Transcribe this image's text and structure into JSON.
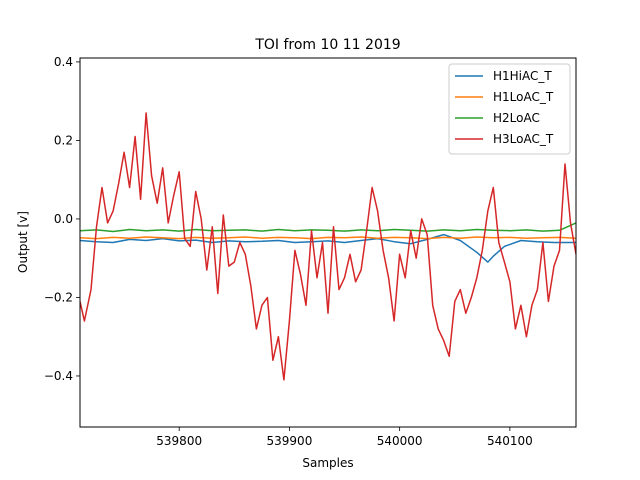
{
  "chart_data": {
    "type": "line",
    "title": "TOI from 10 11 2019",
    "xlabel": "Samples",
    "ylabel": "Output [v]",
    "xlim": [
      539710,
      540160
    ],
    "ylim": [
      -0.53,
      0.41
    ],
    "xticks": [
      539800,
      539900,
      540000,
      540100
    ],
    "xtick_labels": [
      "539800",
      "539900",
      "540000",
      "540100"
    ],
    "yticks": [
      -0.4,
      -0.2,
      0.0,
      0.2,
      0.4
    ],
    "ytick_labels": [
      "−0.4",
      "−0.2",
      "0.0",
      "0.2",
      "0.4"
    ],
    "grid": false,
    "legend_position": "top-right",
    "series": [
      {
        "name": "H1HiAC_T",
        "color": "#1f77b4",
        "x": [
          539710,
          539725,
          539740,
          539755,
          539770,
          539785,
          539800,
          539815,
          539830,
          539845,
          539860,
          539875,
          539890,
          539905,
          539920,
          539935,
          539950,
          539965,
          539980,
          539995,
          540010,
          540025,
          540040,
          540055,
          540070,
          540080,
          540085,
          540095,
          540110,
          540125,
          540140,
          540160
        ],
        "y": [
          -0.055,
          -0.058,
          -0.06,
          -0.052,
          -0.055,
          -0.05,
          -0.056,
          -0.054,
          -0.06,
          -0.056,
          -0.058,
          -0.057,
          -0.055,
          -0.06,
          -0.058,
          -0.056,
          -0.06,
          -0.055,
          -0.05,
          -0.058,
          -0.063,
          -0.052,
          -0.04,
          -0.055,
          -0.085,
          -0.11,
          -0.095,
          -0.07,
          -0.055,
          -0.058,
          -0.06,
          -0.06
        ]
      },
      {
        "name": "H1LoAC_T",
        "color": "#ff7f0e",
        "x": [
          539710,
          539725,
          539740,
          539755,
          539770,
          539785,
          539800,
          539815,
          539830,
          539845,
          539860,
          539875,
          539890,
          539905,
          539920,
          539935,
          539950,
          539965,
          539980,
          539995,
          540010,
          540025,
          540040,
          540055,
          540070,
          540085,
          540100,
          540115,
          540130,
          540145,
          540160
        ],
        "y": [
          -0.048,
          -0.05,
          -0.047,
          -0.049,
          -0.046,
          -0.048,
          -0.05,
          -0.047,
          -0.049,
          -0.048,
          -0.046,
          -0.049,
          -0.047,
          -0.048,
          -0.05,
          -0.047,
          -0.048,
          -0.046,
          -0.049,
          -0.047,
          -0.048,
          -0.05,
          -0.047,
          -0.049,
          -0.046,
          -0.048,
          -0.047,
          -0.049,
          -0.048,
          -0.047,
          -0.049
        ]
      },
      {
        "name": "H2LoAC",
        "color": "#2ca02c",
        "x": [
          539710,
          539725,
          539740,
          539755,
          539770,
          539785,
          539800,
          539815,
          539830,
          539845,
          539860,
          539875,
          539890,
          539905,
          539920,
          539935,
          539950,
          539965,
          539980,
          539995,
          540010,
          540025,
          540040,
          540055,
          540070,
          540085,
          540100,
          540115,
          540130,
          540145,
          540160
        ],
        "y": [
          -0.03,
          -0.028,
          -0.032,
          -0.027,
          -0.03,
          -0.028,
          -0.031,
          -0.027,
          -0.03,
          -0.029,
          -0.028,
          -0.031,
          -0.027,
          -0.03,
          -0.028,
          -0.029,
          -0.031,
          -0.028,
          -0.03,
          -0.027,
          -0.029,
          -0.031,
          -0.028,
          -0.03,
          -0.027,
          -0.029,
          -0.03,
          -0.028,
          -0.031,
          -0.029,
          -0.01
        ]
      },
      {
        "name": "H3LoAC_T",
        "color": "#d62728",
        "x": [
          539710,
          539714,
          539720,
          539725,
          539730,
          539735,
          539740,
          539745,
          539750,
          539755,
          539760,
          539765,
          539770,
          539775,
          539780,
          539785,
          539790,
          539795,
          539800,
          539805,
          539810,
          539815,
          539820,
          539825,
          539830,
          539835,
          539840,
          539845,
          539850,
          539855,
          539860,
          539865,
          539870,
          539875,
          539880,
          539885,
          539890,
          539895,
          539900,
          539905,
          539910,
          539915,
          539920,
          539925,
          539930,
          539935,
          539940,
          539945,
          539950,
          539955,
          539960,
          539965,
          539970,
          539975,
          539980,
          539985,
          539990,
          539995,
          540000,
          540005,
          540010,
          540015,
          540020,
          540025,
          540030,
          540035,
          540040,
          540045,
          540050,
          540055,
          540060,
          540065,
          540070,
          540075,
          540080,
          540085,
          540090,
          540095,
          540100,
          540105,
          540110,
          540115,
          540120,
          540125,
          540130,
          540135,
          540140,
          540145,
          540150,
          540155,
          540160
        ],
        "y": [
          -0.21,
          -0.26,
          -0.18,
          -0.02,
          0.08,
          -0.01,
          0.02,
          0.09,
          0.17,
          0.08,
          0.21,
          0.05,
          0.27,
          0.11,
          0.04,
          0.13,
          -0.01,
          0.06,
          0.12,
          -0.05,
          -0.07,
          0.07,
          0.0,
          -0.13,
          -0.02,
          -0.19,
          0.01,
          -0.12,
          -0.11,
          -0.06,
          -0.09,
          -0.17,
          -0.28,
          -0.22,
          -0.2,
          -0.36,
          -0.3,
          -0.41,
          -0.26,
          -0.08,
          -0.14,
          -0.22,
          -0.03,
          -0.15,
          -0.06,
          -0.24,
          -0.02,
          -0.18,
          -0.15,
          -0.09,
          -0.16,
          -0.13,
          -0.03,
          0.08,
          0.02,
          -0.08,
          -0.15,
          -0.26,
          -0.09,
          -0.15,
          -0.03,
          -0.1,
          0.0,
          -0.04,
          -0.22,
          -0.28,
          -0.31,
          -0.35,
          -0.21,
          -0.18,
          -0.24,
          -0.2,
          -0.15,
          -0.08,
          0.02,
          0.08,
          -0.06,
          -0.11,
          -0.16,
          -0.28,
          -0.22,
          -0.3,
          -0.22,
          -0.18,
          -0.06,
          -0.21,
          -0.12,
          -0.08,
          0.14,
          -0.01,
          -0.09
        ]
      }
    ]
  }
}
